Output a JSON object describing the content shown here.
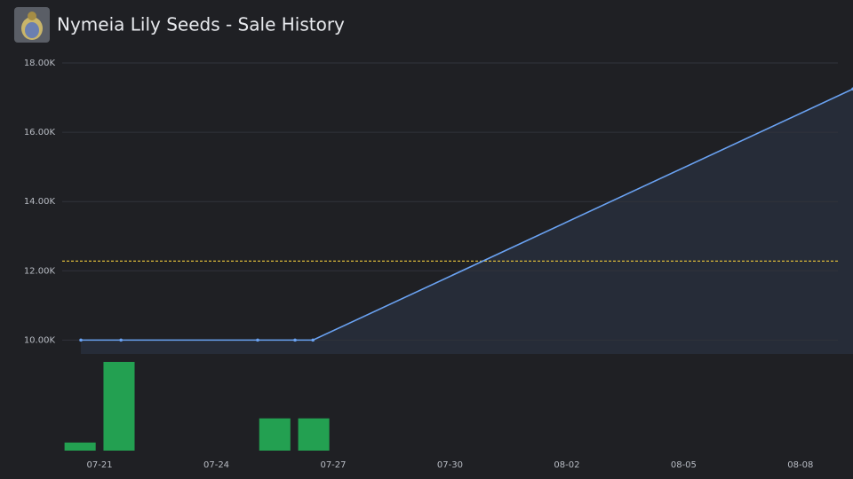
{
  "chart_data": [
    {
      "type": "line",
      "title": "Nymeia Lily Seeds - Sale History",
      "x": [
        201.52,
        202.55,
        206.06,
        207.02,
        207.48,
        221.35
      ],
      "series": [
        {
          "name": "Price",
          "color": "#6aa2f2",
          "values": [
            10000,
            10000,
            10000,
            10000,
            10000,
            17250
          ]
        }
      ],
      "average": 12280,
      "average_color": "#d9b83a",
      "xlim": [
        201.04,
        221.35
      ],
      "xticks": [
        {
          "value": 202,
          "label": "07-21"
        },
        {
          "value": 205,
          "label": "07-24"
        },
        {
          "value": 208,
          "label": "07-27"
        },
        {
          "value": 211,
          "label": "07-30"
        },
        {
          "value": 214,
          "label": "08-02"
        },
        {
          "value": 217,
          "label": "08-05"
        },
        {
          "value": 220,
          "label": "08-08"
        }
      ],
      "ylim": [
        9600,
        18000
      ],
      "yticks": [
        {
          "value": 10000,
          "label": "10.00K"
        },
        {
          "value": 12000,
          "label": "12.00K"
        },
        {
          "value": 14000,
          "label": "14.00K"
        },
        {
          "value": 16000,
          "label": "16.00K"
        },
        {
          "value": 18000,
          "label": "18.00K"
        }
      ],
      "grid": true
    },
    {
      "type": "bar",
      "x": [
        201.5,
        202.5,
        206.5,
        207.5
      ],
      "values": [
        1,
        11,
        4,
        4
      ],
      "color": "#23a051",
      "ylim": [
        0,
        11
      ]
    }
  ]
}
